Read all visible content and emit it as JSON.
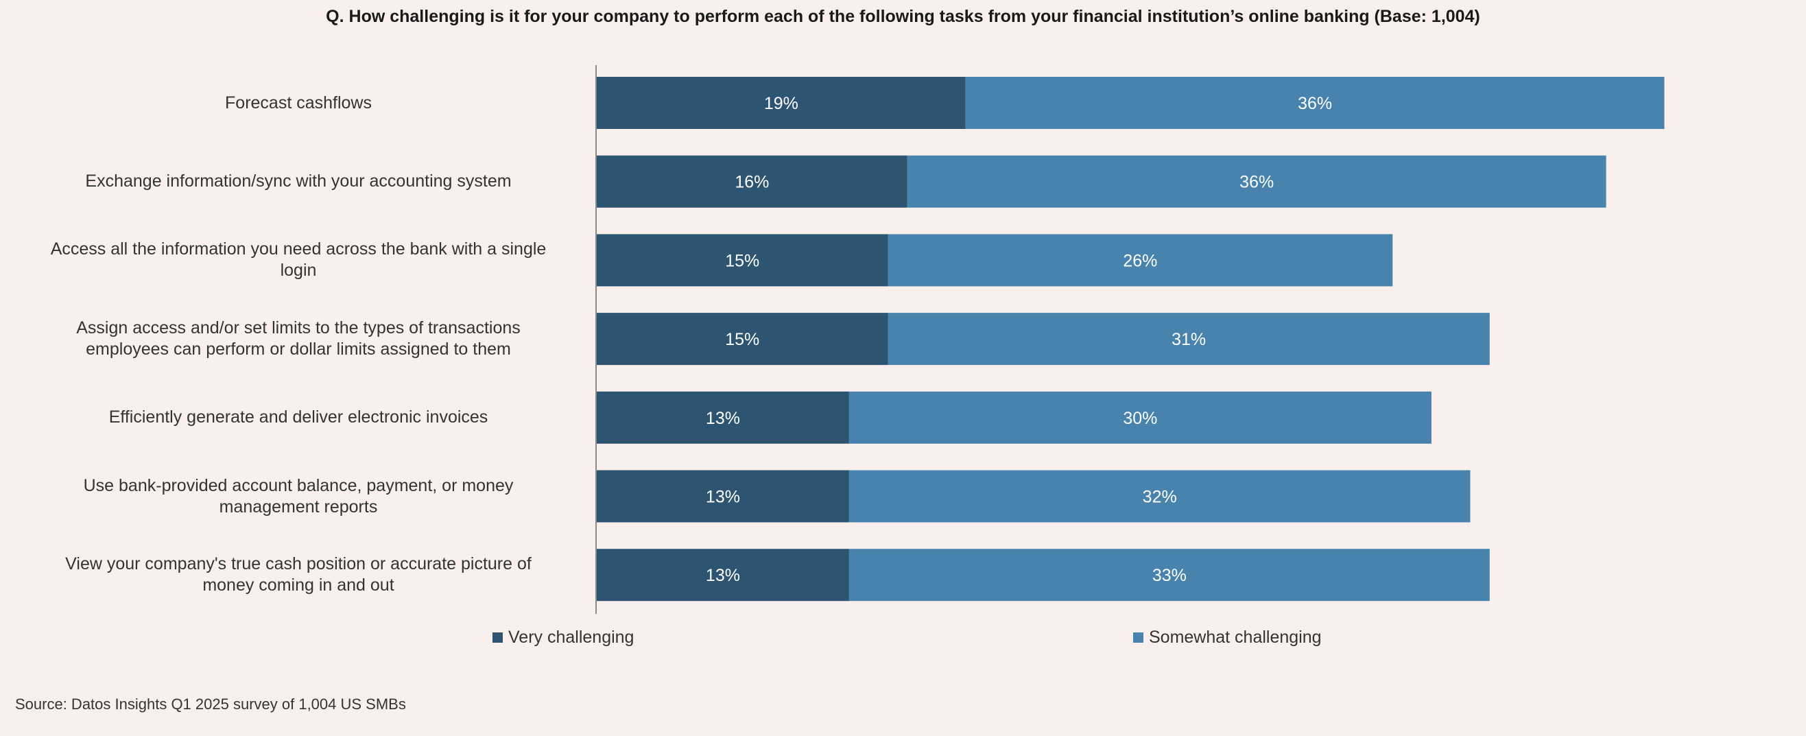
{
  "chart_data": {
    "type": "bar",
    "orientation": "horizontal",
    "stacked": true,
    "title": "Q. How challenging is it for your company to perform each of the following tasks from your financial institution’s online banking (Base: 1,004)",
    "categories": [
      "Forecast cashflows",
      "Exchange information/sync with your accounting system",
      "Access all the information you need across the bank with a single login",
      "Assign access and/or set limits to the types of transactions employees can perform or dollar limits assigned to them",
      "Efficiently generate and deliver electronic invoices",
      "Use bank-provided account balance, payment, or money management reports",
      "View your company's true cash position or accurate picture of money coming in and out"
    ],
    "series": [
      {
        "name": "Very challenging",
        "color": "#2d5470",
        "values": [
          19,
          16,
          15,
          15,
          13,
          13,
          13
        ],
        "labels": [
          "19%",
          "16%",
          "15%",
          "15%",
          "13%",
          "13%",
          "13%"
        ]
      },
      {
        "name": "Somewhat challenging",
        "color": "#4783ad",
        "values": [
          36,
          36,
          26,
          31,
          30,
          32,
          33
        ],
        "labels": [
          "36%",
          "36%",
          "26%",
          "31%",
          "30%",
          "32%",
          "33%"
        ]
      }
    ],
    "xlim": [
      0,
      55
    ],
    "grid": false,
    "legend_position": "bottom",
    "source": "Source: Datos Insights Q1 2025 survey of 1,004 US SMBs"
  }
}
